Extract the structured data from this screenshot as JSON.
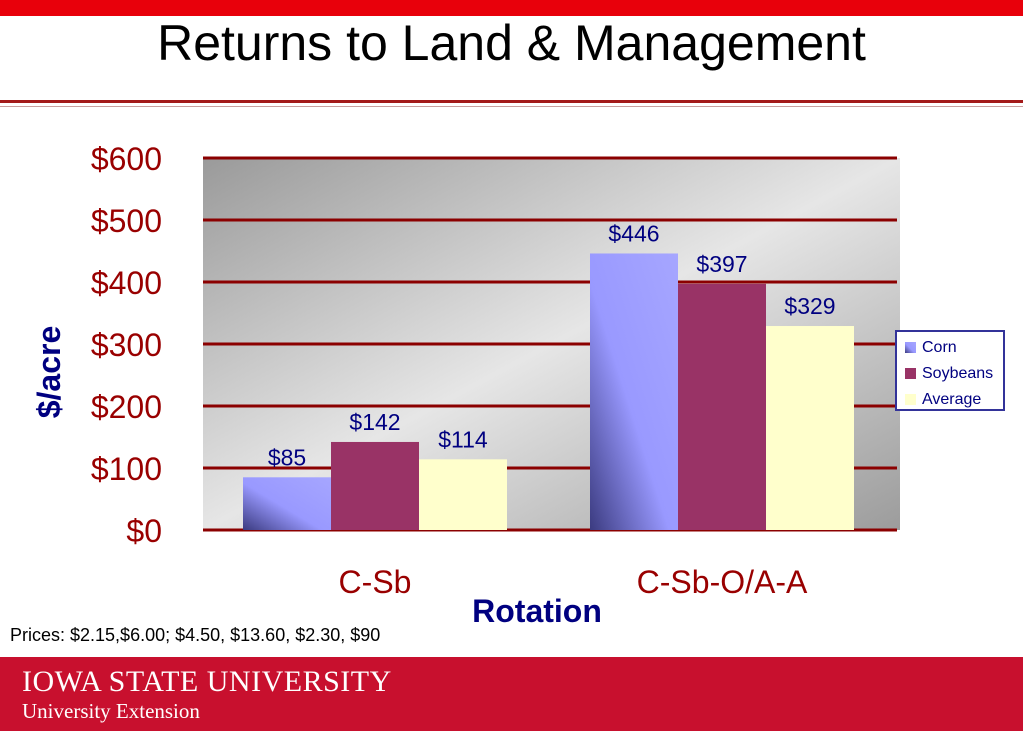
{
  "page": {
    "title": "Returns to Land & Management",
    "footnote": "Prices: $2.15,$6.00; $4.50, $13.60, $2.30, $90",
    "footer": {
      "institution": "IOWA STATE UNIVERSITY",
      "unit": "University Extension"
    }
  },
  "colors": {
    "top_bar": "#e8000b",
    "footer": "#c8102e",
    "axis_text": "#990000",
    "axis_title": "#000080",
    "gridline": "#8b0000",
    "corn": "#9999ff",
    "soybeans": "#993366",
    "average": "#ffffcc"
  },
  "chart_data": {
    "type": "bar",
    "title": "",
    "xlabel": "Rotation",
    "ylabel": "$/acre",
    "ylim": [
      0,
      600
    ],
    "yticks": [
      0,
      100,
      200,
      300,
      400,
      500,
      600
    ],
    "ytick_labels": [
      "$0",
      "$100",
      "$200",
      "$300",
      "$400",
      "$500",
      "$600"
    ],
    "categories": [
      "C-Sb",
      "C-Sb-O/A-A"
    ],
    "series": [
      {
        "name": "Corn",
        "values": [
          85,
          446
        ],
        "labels": [
          "$85",
          "$446"
        ],
        "color": "#9999ff"
      },
      {
        "name": "Soybeans",
        "values": [
          142,
          397
        ],
        "labels": [
          "$142",
          "$397"
        ],
        "color": "#993366"
      },
      {
        "name": "Average",
        "values": [
          114,
          329
        ],
        "labels": [
          "$114",
          "$329"
        ],
        "color": "#ffffcc"
      }
    ],
    "grid": true,
    "legend": "right"
  }
}
